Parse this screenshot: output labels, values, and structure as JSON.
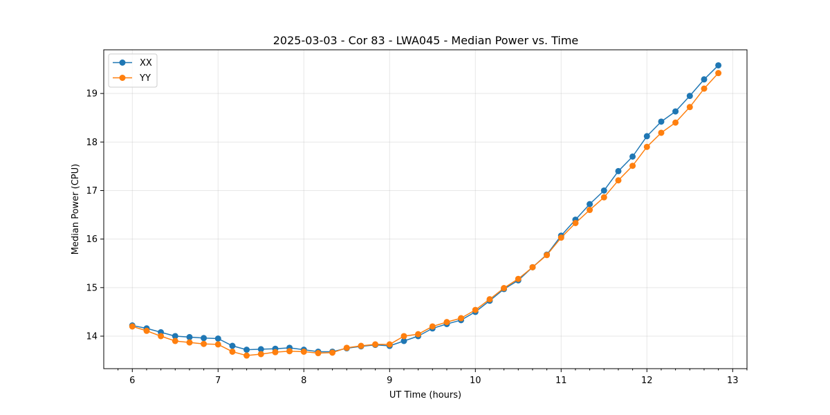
{
  "chart_data": {
    "type": "line",
    "title": "2025-03-03 - Cor 83 - LWA045 - Median Power vs. Time",
    "xlabel": "UT Time (hours)",
    "ylabel": "Median Power (CPU)",
    "xlim": [
      5.667,
      13.167
    ],
    "ylim": [
      13.33,
      19.9
    ],
    "xticks": [
      6,
      7,
      8,
      9,
      10,
      11,
      12,
      13
    ],
    "xtick_labels": [
      "6",
      "7",
      "8",
      "9",
      "10",
      "11",
      "12",
      "13"
    ],
    "yticks": [
      14,
      15,
      16,
      17,
      18,
      19
    ],
    "ytick_labels": [
      "14",
      "15",
      "16",
      "17",
      "18",
      "19"
    ],
    "grid": true,
    "legend_position": "top-left",
    "x": [
      6.0,
      6.167,
      6.333,
      6.5,
      6.667,
      6.833,
      7.0,
      7.167,
      7.333,
      7.5,
      7.667,
      7.833,
      8.0,
      8.167,
      8.333,
      8.5,
      8.667,
      8.833,
      9.0,
      9.167,
      9.333,
      9.5,
      9.667,
      9.833,
      10.0,
      10.167,
      10.333,
      10.5,
      10.667,
      10.833,
      11.0,
      11.167,
      11.333,
      11.5,
      11.667,
      11.833,
      12.0,
      12.167,
      12.333,
      12.5,
      12.667,
      12.833
    ],
    "series": [
      {
        "name": "XX",
        "color": "#1f77b4",
        "values": [
          14.22,
          14.16,
          14.08,
          14.0,
          13.98,
          13.96,
          13.95,
          13.8,
          13.72,
          13.73,
          13.74,
          13.76,
          13.72,
          13.68,
          13.68,
          13.75,
          13.79,
          13.82,
          13.8,
          13.9,
          14.0,
          14.16,
          14.25,
          14.33,
          14.5,
          14.73,
          14.97,
          15.15,
          15.42,
          15.68,
          16.07,
          16.4,
          16.72,
          17.0,
          17.4,
          17.7,
          18.12,
          18.42,
          18.63,
          18.95,
          19.29,
          19.58
        ]
      },
      {
        "name": "YY",
        "color": "#ff7f0e",
        "values": [
          14.2,
          14.11,
          14.0,
          13.9,
          13.87,
          13.84,
          13.83,
          13.68,
          13.6,
          13.63,
          13.67,
          13.69,
          13.68,
          13.65,
          13.66,
          13.76,
          13.8,
          13.83,
          13.83,
          14.0,
          14.04,
          14.2,
          14.29,
          14.37,
          14.54,
          14.76,
          14.99,
          15.18,
          15.42,
          15.67,
          16.03,
          16.33,
          16.6,
          16.86,
          17.21,
          17.51,
          17.9,
          18.19,
          18.4,
          18.72,
          19.1,
          19.42
        ]
      }
    ]
  }
}
